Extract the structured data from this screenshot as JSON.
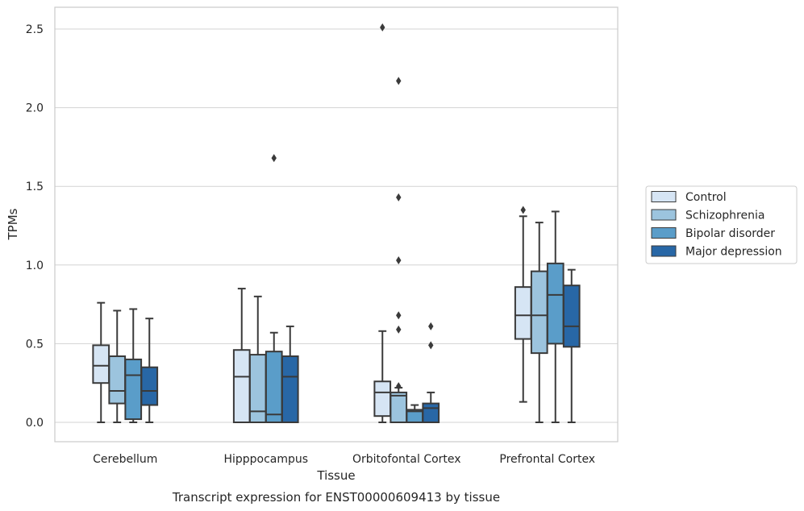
{
  "chart_data": {
    "type": "boxplot",
    "xlabel": "Tissue",
    "ylabel": "TPMs",
    "caption": "Transcript expression for ENST00000609413 by tissue",
    "ylim": [
      -0.12,
      2.65
    ],
    "yticks": [
      0.0,
      0.5,
      1.0,
      1.5,
      2.0,
      2.5
    ],
    "ytick_labels": [
      "0.0",
      "0.5",
      "1.0",
      "1.5",
      "2.0",
      "2.5"
    ],
    "grid": "horizontal",
    "legend_position": "right",
    "categories": [
      "Cerebellum",
      "Hipppocampus",
      "Orbitofontal Cortex",
      "Prefrontal Cortex"
    ],
    "series": [
      {
        "name": "Control",
        "color": "#d6e5f4",
        "boxes": [
          {
            "whislo": 0.0,
            "q1": 0.25,
            "med": 0.36,
            "q3": 0.49,
            "whishi": 0.76,
            "fliers": []
          },
          {
            "whislo": 0.0,
            "q1": 0.0,
            "med": 0.29,
            "q3": 0.46,
            "whishi": 0.85,
            "fliers": []
          },
          {
            "whislo": 0.0,
            "q1": 0.04,
            "med": 0.19,
            "q3": 0.26,
            "whishi": 0.58,
            "fliers": [
              2.51
            ]
          },
          {
            "whislo": 0.13,
            "q1": 0.53,
            "med": 0.68,
            "q3": 0.86,
            "whishi": 1.31,
            "fliers": [
              1.35
            ]
          }
        ]
      },
      {
        "name": "Schizophrenia",
        "color": "#9cc4de",
        "boxes": [
          {
            "whislo": 0.0,
            "q1": 0.12,
            "med": 0.2,
            "q3": 0.42,
            "whishi": 0.71,
            "fliers": []
          },
          {
            "whislo": 0.0,
            "q1": 0.0,
            "med": 0.07,
            "q3": 0.43,
            "whishi": 0.8,
            "fliers": []
          },
          {
            "whislo": 0.0,
            "q1": 0.0,
            "med": 0.17,
            "q3": 0.19,
            "whishi": 0.22,
            "fliers": [
              2.17,
              1.43,
              1.03,
              0.68,
              0.59,
              0.23
            ]
          },
          {
            "whislo": 0.0,
            "q1": 0.44,
            "med": 0.68,
            "q3": 0.96,
            "whishi": 1.27,
            "fliers": []
          }
        ]
      },
      {
        "name": "Bipolar disorder",
        "color": "#5a9dc9",
        "boxes": [
          {
            "whislo": 0.0,
            "q1": 0.02,
            "med": 0.3,
            "q3": 0.4,
            "whishi": 0.72,
            "fliers": []
          },
          {
            "whislo": 0.0,
            "q1": 0.0,
            "med": 0.05,
            "q3": 0.45,
            "whishi": 0.57,
            "fliers": [
              1.68
            ]
          },
          {
            "whislo": 0.0,
            "q1": 0.0,
            "med": 0.07,
            "q3": 0.08,
            "whishi": 0.11,
            "fliers": []
          },
          {
            "whislo": 0.0,
            "q1": 0.5,
            "med": 0.81,
            "q3": 1.01,
            "whishi": 1.34,
            "fliers": []
          }
        ]
      },
      {
        "name": "Major depression",
        "color": "#2867a6",
        "boxes": [
          {
            "whislo": 0.0,
            "q1": 0.11,
            "med": 0.2,
            "q3": 0.35,
            "whishi": 0.66,
            "fliers": []
          },
          {
            "whislo": 0.0,
            "q1": 0.0,
            "med": 0.29,
            "q3": 0.42,
            "whishi": 0.61,
            "fliers": []
          },
          {
            "whislo": 0.0,
            "q1": 0.0,
            "med": 0.09,
            "q3": 0.12,
            "whishi": 0.19,
            "fliers": [
              0.61,
              0.49
            ]
          },
          {
            "whislo": 0.0,
            "q1": 0.48,
            "med": 0.61,
            "q3": 0.87,
            "whishi": 0.97,
            "fliers": []
          }
        ]
      }
    ]
  }
}
